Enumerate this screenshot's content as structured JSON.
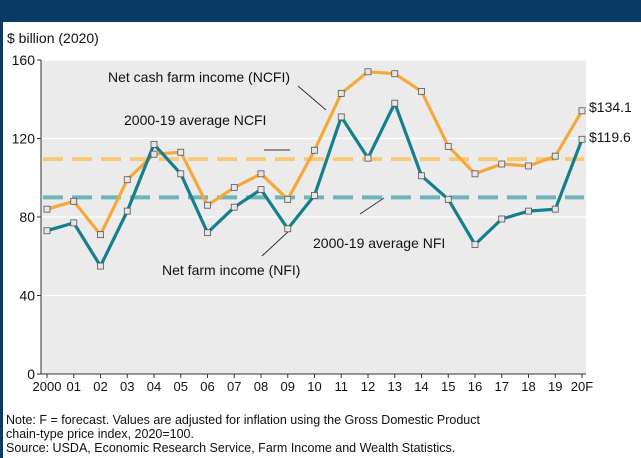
{
  "chart_data": {
    "type": "line",
    "ylabel": "$ billion (2020)",
    "ylim": [
      0,
      160
    ],
    "yticks": [
      0,
      40,
      80,
      120,
      160
    ],
    "categories": [
      "2000",
      "01",
      "02",
      "03",
      "04",
      "05",
      "06",
      "07",
      "08",
      "09",
      "10",
      "11",
      "12",
      "13",
      "14",
      "15",
      "16",
      "17",
      "18",
      "19",
      "20F"
    ],
    "series": [
      {
        "name": "Net cash farm income (NCFI)",
        "color": "#f5a93b",
        "values": [
          84,
          88,
          71,
          99,
          112,
          113,
          86,
          95,
          102,
          89,
          114,
          143,
          154,
          153,
          144,
          116,
          102,
          107,
          106,
          111,
          134.1
        ]
      },
      {
        "name": "Net farm income (NFI)",
        "color": "#14808d",
        "values": [
          73,
          77,
          55,
          83,
          117,
          102,
          72,
          85,
          94,
          74,
          91,
          131,
          110,
          138,
          101,
          89,
          66,
          79,
          83,
          84,
          119.6
        ]
      }
    ],
    "averages": [
      {
        "name": "2000-19 average NCFI",
        "value": 109.5,
        "color": "#f9c97a"
      },
      {
        "name": "2000-19 average NFI",
        "value": 90,
        "color": "#6fb3bb"
      }
    ],
    "annotations": {
      "ncfi_label": "Net cash farm income (NCFI)",
      "avg_ncfi_label": "2000-19 average NCFI",
      "avg_nfi_label": "2000-19 average NFI",
      "nfi_label": "Net farm income (NFI)",
      "end_ncfi": "$134.1",
      "end_nfi": "$119.6"
    }
  },
  "notes": {
    "line1": "Note: F = forecast. Values are adjusted for inflation using the Gross Domestic Product",
    "line2": "chain-type price index, 2020=100.",
    "line3": "Source: USDA, Economic Research Service, Farm Income and Wealth Statistics."
  }
}
